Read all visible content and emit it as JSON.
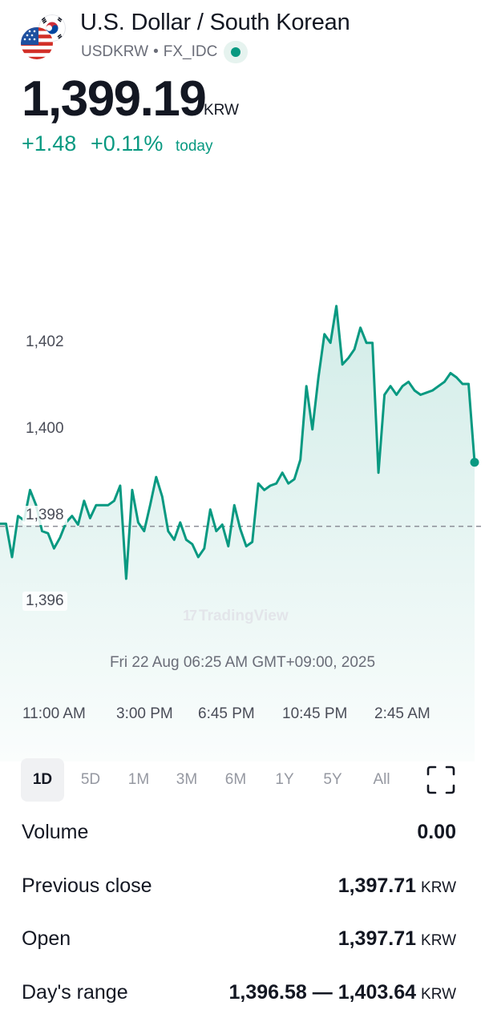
{
  "header": {
    "title": "U.S. Dollar / South Korean",
    "symbol": "USDKRW",
    "separator": "•",
    "exchange": "FX_IDC",
    "status": "live"
  },
  "quote": {
    "price": "1,399.19",
    "unit": "KRW",
    "change_abs": "+1.48",
    "change_pct": "+0.11%",
    "change_period": "today",
    "color_up": "#089981"
  },
  "chart": {
    "watermark": "TradingView",
    "timestamp": "Fri 22 Aug 06:25 AM GMT+09:00, 2025",
    "y_ticks": [
      "1,402",
      "1,400",
      "1,398",
      "1,396"
    ],
    "x_ticks": [
      "11:00 AM",
      "3:00 PM",
      "6:45 PM",
      "10:45 PM",
      "2:45 AM"
    ]
  },
  "ranges": [
    "1D",
    "5D",
    "1M",
    "3M",
    "6M",
    "1Y",
    "5Y",
    "All"
  ],
  "active_range": "1D",
  "stats": [
    {
      "label": "Volume",
      "value": "0.00",
      "unit": ""
    },
    {
      "label": "Previous close",
      "value": "1,397.71",
      "unit": "KRW"
    },
    {
      "label": "Open",
      "value": "1,397.71",
      "unit": "KRW"
    },
    {
      "label": "Day's range",
      "value": "1,396.58 — 1,403.64",
      "unit": "KRW"
    }
  ],
  "chart_data": {
    "type": "area",
    "title": "",
    "xlabel": "",
    "ylabel": "",
    "x_ticks": [
      "11:00 AM",
      "3:00 PM",
      "6:45 PM",
      "10:45 PM",
      "2:45 AM"
    ],
    "ylim": [
      1395.0,
      1406.0
    ],
    "reference_line": 1397.71,
    "grid": false,
    "color": "#089981",
    "series": [
      {
        "values": [
          1397.77,
          1397.77,
          1397.0,
          1397.95,
          1397.85,
          1398.55,
          1398.2,
          1397.6,
          1397.55,
          1397.2,
          1397.45,
          1397.8,
          1397.95,
          1397.75,
          1398.3,
          1397.9,
          1398.2,
          1398.2,
          1398.2,
          1398.3,
          1398.65,
          1396.5,
          1398.55,
          1397.8,
          1397.6,
          1398.2,
          1398.85,
          1398.4,
          1397.6,
          1397.4,
          1397.8,
          1397.4,
          1397.3,
          1397.0,
          1397.2,
          1398.1,
          1397.6,
          1397.75,
          1397.25,
          1398.2,
          1397.65,
          1397.25,
          1397.35,
          1398.7,
          1398.55,
          1398.65,
          1398.7,
          1398.95,
          1398.7,
          1398.8,
          1399.25,
          1400.95,
          1399.95,
          1401.15,
          1402.15,
          1401.95,
          1402.8,
          1401.45,
          1401.6,
          1401.8,
          1402.3,
          1401.95,
          1401.95,
          1398.95,
          1400.75,
          1400.95,
          1400.75,
          1400.95,
          1401.05,
          1400.85,
          1400.75,
          1400.8,
          1400.85,
          1400.95,
          1401.05,
          1401.25,
          1401.15,
          1401.0,
          1401.0,
          1399.19
        ]
      }
    ]
  }
}
